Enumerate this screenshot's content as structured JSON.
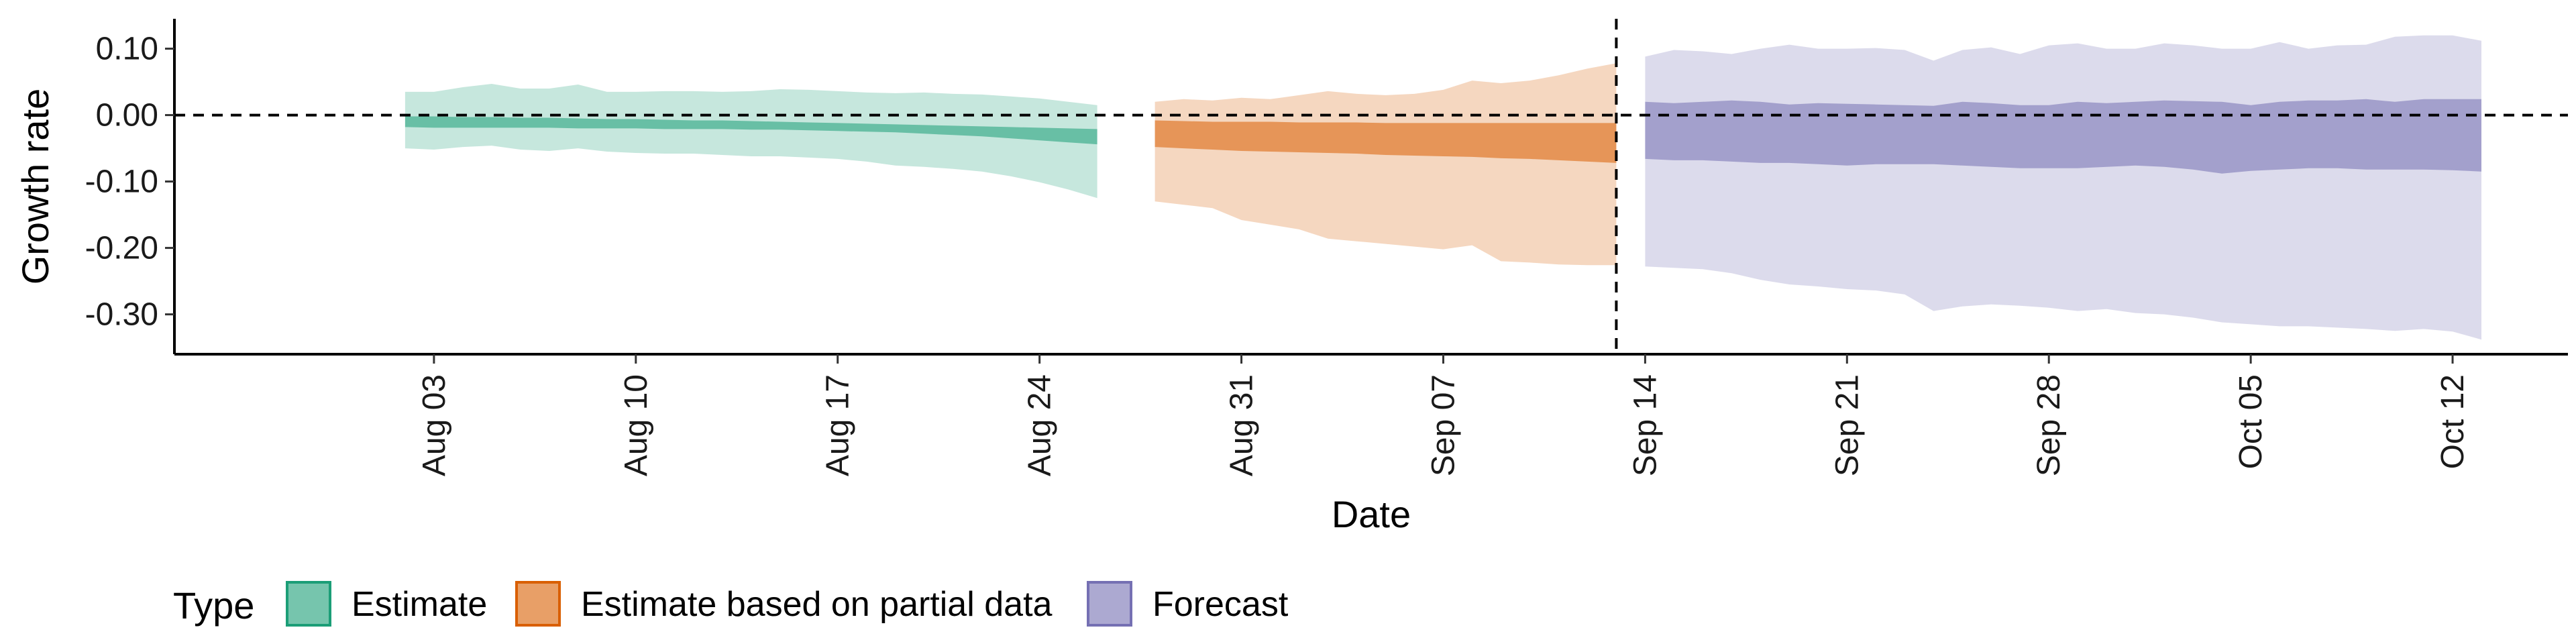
{
  "chart_data": {
    "type": "area",
    "xlabel": "Date",
    "ylabel": "Growth rate",
    "ylim": [
      -0.36,
      0.145
    ],
    "xlim": [
      "2025-07-25",
      "2025-10-16"
    ],
    "year": "2025",
    "x_ticks": [
      "Aug 03",
      "Aug 10",
      "Aug 17",
      "Aug 24",
      "Aug 31",
      "Sep 07",
      "Sep 14",
      "Sep 21",
      "Sep 28",
      "Oct 05",
      "Oct 12"
    ],
    "x_tick_dates": [
      "2025-08-03",
      "2025-08-10",
      "2025-08-17",
      "2025-08-24",
      "2025-08-31",
      "2025-09-07",
      "2025-09-14",
      "2025-09-21",
      "2025-09-28",
      "2025-10-05",
      "2025-10-12"
    ],
    "y_ticks": [
      0.1,
      0.0,
      -0.1,
      -0.2,
      -0.3
    ],
    "y_tick_labels": [
      "0.10",
      "0.00",
      "-0.10",
      "-0.20",
      "-0.30"
    ],
    "reference_lines": {
      "horizontal_y": 0.0,
      "vertical_x": "2025-09-13"
    },
    "grid": false,
    "legend": {
      "title": "Type",
      "placement": "bottom-left",
      "entries": [
        "Estimate",
        "Estimate based on partial data",
        "Forecast"
      ]
    },
    "series": [
      {
        "name": "Estimate",
        "color": "#1b9e77",
        "x": [
          "2025-08-02",
          "2025-08-03",
          "2025-08-04",
          "2025-08-05",
          "2025-08-06",
          "2025-08-07",
          "2025-08-08",
          "2025-08-09",
          "2025-08-10",
          "2025-08-11",
          "2025-08-12",
          "2025-08-13",
          "2025-08-14",
          "2025-08-15",
          "2025-08-16",
          "2025-08-17",
          "2025-08-18",
          "2025-08-19",
          "2025-08-20",
          "2025-08-21",
          "2025-08-22",
          "2025-08-23",
          "2025-08-24",
          "2025-08-25",
          "2025-08-26"
        ],
        "outer_upper": [
          0.035,
          0.035,
          0.042,
          0.047,
          0.04,
          0.04,
          0.046,
          0.035,
          0.035,
          0.036,
          0.036,
          0.035,
          0.036,
          0.039,
          0.038,
          0.036,
          0.034,
          0.033,
          0.034,
          0.032,
          0.031,
          0.028,
          0.025,
          0.02,
          0.015
        ],
        "inner_upper": [
          -0.002,
          -0.002,
          -0.003,
          -0.003,
          -0.004,
          -0.004,
          -0.005,
          -0.006,
          -0.006,
          -0.007,
          -0.008,
          -0.008,
          -0.009,
          -0.01,
          -0.011,
          -0.012,
          -0.013,
          -0.014,
          -0.015,
          -0.016,
          -0.017,
          -0.018,
          -0.019,
          -0.02,
          -0.021
        ],
        "inner_lower": [
          -0.018,
          -0.019,
          -0.019,
          -0.019,
          -0.019,
          -0.019,
          -0.02,
          -0.02,
          -0.02,
          -0.021,
          -0.021,
          -0.021,
          -0.022,
          -0.022,
          -0.023,
          -0.024,
          -0.025,
          -0.026,
          -0.028,
          -0.03,
          -0.032,
          -0.035,
          -0.038,
          -0.041,
          -0.044
        ],
        "outer_lower": [
          -0.05,
          -0.052,
          -0.048,
          -0.046,
          -0.052,
          -0.054,
          -0.05,
          -0.055,
          -0.057,
          -0.058,
          -0.058,
          -0.06,
          -0.062,
          -0.062,
          -0.064,
          -0.066,
          -0.07,
          -0.076,
          -0.078,
          -0.081,
          -0.085,
          -0.092,
          -0.101,
          -0.112,
          -0.125
        ]
      },
      {
        "name": "Estimate based on partial data",
        "color": "#d95f02",
        "x": [
          "2025-08-28",
          "2025-08-29",
          "2025-08-30",
          "2025-08-31",
          "2025-09-01",
          "2025-09-02",
          "2025-09-03",
          "2025-09-04",
          "2025-09-05",
          "2025-09-06",
          "2025-09-07",
          "2025-09-08",
          "2025-09-09",
          "2025-09-10",
          "2025-09-11",
          "2025-09-12",
          "2025-09-13"
        ],
        "outer_upper": [
          0.02,
          0.024,
          0.022,
          0.026,
          0.024,
          0.03,
          0.036,
          0.032,
          0.03,
          0.032,
          0.038,
          0.052,
          0.048,
          0.052,
          0.06,
          0.07,
          0.078
        ],
        "inner_upper": [
          -0.008,
          -0.009,
          -0.01,
          -0.01,
          -0.01,
          -0.011,
          -0.011,
          -0.011,
          -0.012,
          -0.012,
          -0.012,
          -0.012,
          -0.012,
          -0.012,
          -0.012,
          -0.012,
          -0.012
        ],
        "inner_lower": [
          -0.048,
          -0.05,
          -0.052,
          -0.054,
          -0.055,
          -0.056,
          -0.057,
          -0.058,
          -0.06,
          -0.061,
          -0.062,
          -0.063,
          -0.065,
          -0.066,
          -0.068,
          -0.07,
          -0.072
        ],
        "outer_lower": [
          -0.13,
          -0.135,
          -0.14,
          -0.158,
          -0.165,
          -0.172,
          -0.186,
          -0.19,
          -0.194,
          -0.198,
          -0.202,
          -0.196,
          -0.22,
          -0.222,
          -0.225,
          -0.226,
          -0.226
        ]
      },
      {
        "name": "Forecast",
        "color": "#7570b3",
        "x": [
          "2025-09-14",
          "2025-09-15",
          "2025-09-16",
          "2025-09-17",
          "2025-09-18",
          "2025-09-19",
          "2025-09-20",
          "2025-09-21",
          "2025-09-22",
          "2025-09-23",
          "2025-09-24",
          "2025-09-25",
          "2025-09-26",
          "2025-09-27",
          "2025-09-28",
          "2025-09-29",
          "2025-09-30",
          "2025-10-01",
          "2025-10-02",
          "2025-10-03",
          "2025-10-04",
          "2025-10-05",
          "2025-10-06",
          "2025-10-07",
          "2025-10-08",
          "2025-10-09",
          "2025-10-10",
          "2025-10-11",
          "2025-10-12",
          "2025-10-13"
        ],
        "outer_upper": [
          0.088,
          0.098,
          0.096,
          0.092,
          0.1,
          0.106,
          0.1,
          0.1,
          0.101,
          0.098,
          0.082,
          0.098,
          0.102,
          0.092,
          0.105,
          0.108,
          0.1,
          0.1,
          0.108,
          0.105,
          0.1,
          0.1,
          0.11,
          0.1,
          0.105,
          0.106,
          0.118,
          0.12,
          0.12,
          0.112
        ],
        "inner_upper": [
          0.02,
          0.018,
          0.02,
          0.022,
          0.02,
          0.016,
          0.018,
          0.017,
          0.016,
          0.015,
          0.014,
          0.02,
          0.018,
          0.015,
          0.015,
          0.02,
          0.018,
          0.02,
          0.022,
          0.021,
          0.02,
          0.015,
          0.02,
          0.022,
          0.022,
          0.024,
          0.02,
          0.024,
          0.024,
          0.024
        ],
        "inner_lower": [
          -0.066,
          -0.068,
          -0.068,
          -0.07,
          -0.072,
          -0.072,
          -0.074,
          -0.076,
          -0.074,
          -0.074,
          -0.074,
          -0.076,
          -0.078,
          -0.08,
          -0.08,
          -0.08,
          -0.078,
          -0.076,
          -0.078,
          -0.082,
          -0.088,
          -0.084,
          -0.082,
          -0.08,
          -0.08,
          -0.082,
          -0.082,
          -0.082,
          -0.083,
          -0.085
        ],
        "outer_lower": [
          -0.228,
          -0.23,
          -0.232,
          -0.238,
          -0.248,
          -0.255,
          -0.258,
          -0.262,
          -0.264,
          -0.27,
          -0.295,
          -0.288,
          -0.285,
          -0.287,
          -0.29,
          -0.295,
          -0.292,
          -0.298,
          -0.3,
          -0.305,
          -0.312,
          -0.315,
          -0.318,
          -0.318,
          -0.32,
          -0.322,
          -0.325,
          -0.322,
          -0.326,
          -0.338
        ]
      }
    ]
  }
}
